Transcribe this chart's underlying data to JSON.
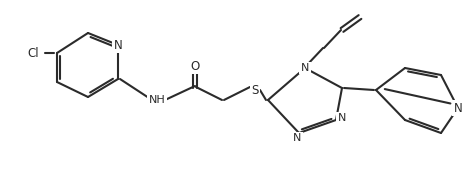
{
  "bg": "#ffffff",
  "lc": "#2b2b2b",
  "lw": 1.5,
  "fs": 8.0,
  "figsize": [
    4.77,
    1.8
  ],
  "dpi": 100,
  "xlim": [
    0,
    477
  ],
  "ylim": [
    0,
    180
  ]
}
